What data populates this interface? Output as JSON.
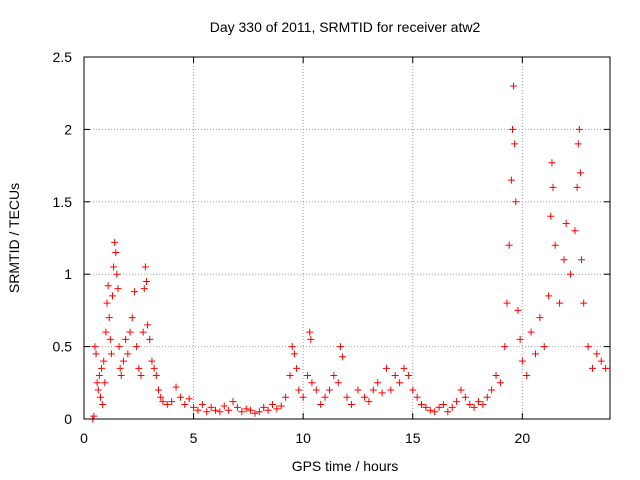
{
  "chart_data": {
    "type": "scatter",
    "title": "Day 330 of 2011, SRMTID for receiver atw2",
    "xlabel": "GPS time / hours",
    "ylabel": "SRMTID / TECUs",
    "xlim": [
      0,
      24
    ],
    "ylim": [
      0,
      2.5
    ],
    "xticks": [
      0,
      5,
      10,
      15,
      20
    ],
    "yticks": [
      0,
      0.5,
      1,
      1.5,
      2,
      2.5
    ],
    "xtick_labels": [
      "0",
      "5",
      "10",
      "15",
      "20"
    ],
    "ytick_labels": [
      "0",
      "0.5",
      "1",
      "1.5",
      "2",
      "2.5"
    ],
    "grid": true,
    "marker": "+",
    "color": "#ff0000",
    "series": [
      {
        "name": "SRMTID",
        "points": [
          [
            0.4,
            0.0
          ],
          [
            0.45,
            0.02
          ],
          [
            0.5,
            0.5
          ],
          [
            0.55,
            0.45
          ],
          [
            0.6,
            0.25
          ],
          [
            0.65,
            0.2
          ],
          [
            0.7,
            0.3
          ],
          [
            0.75,
            0.15
          ],
          [
            0.8,
            0.35
          ],
          [
            0.85,
            0.1
          ],
          [
            0.9,
            0.4
          ],
          [
            0.95,
            0.25
          ],
          [
            1.0,
            0.6
          ],
          [
            1.05,
            0.8
          ],
          [
            1.1,
            0.92
          ],
          [
            1.15,
            0.7
          ],
          [
            1.2,
            0.55
          ],
          [
            1.25,
            0.45
          ],
          [
            1.3,
            0.85
          ],
          [
            1.35,
            1.05
          ],
          [
            1.4,
            1.22
          ],
          [
            1.45,
            1.15
          ],
          [
            1.5,
            1.0
          ],
          [
            1.55,
            0.9
          ],
          [
            1.6,
            0.5
          ],
          [
            1.65,
            0.35
          ],
          [
            1.7,
            0.3
          ],
          [
            1.8,
            0.4
          ],
          [
            1.9,
            0.55
          ],
          [
            2.0,
            0.45
          ],
          [
            2.1,
            0.6
          ],
          [
            2.2,
            0.7
          ],
          [
            2.3,
            0.88
          ],
          [
            2.4,
            0.5
          ],
          [
            2.5,
            0.35
          ],
          [
            2.6,
            0.3
          ],
          [
            2.7,
            0.6
          ],
          [
            2.75,
            0.9
          ],
          [
            2.8,
            1.05
          ],
          [
            2.85,
            0.95
          ],
          [
            2.9,
            0.65
          ],
          [
            3.0,
            0.55
          ],
          [
            3.1,
            0.4
          ],
          [
            3.2,
            0.35
          ],
          [
            3.3,
            0.3
          ],
          [
            3.4,
            0.2
          ],
          [
            3.5,
            0.15
          ],
          [
            3.6,
            0.12
          ],
          [
            3.8,
            0.1
          ],
          [
            4.0,
            0.12
          ],
          [
            4.2,
            0.22
          ],
          [
            4.4,
            0.15
          ],
          [
            4.6,
            0.1
          ],
          [
            4.8,
            0.14
          ],
          [
            5.0,
            0.08
          ],
          [
            5.2,
            0.06
          ],
          [
            5.4,
            0.1
          ],
          [
            5.6,
            0.05
          ],
          [
            5.8,
            0.08
          ],
          [
            6.0,
            0.06
          ],
          [
            6.2,
            0.05
          ],
          [
            6.4,
            0.09
          ],
          [
            6.6,
            0.06
          ],
          [
            6.8,
            0.12
          ],
          [
            7.0,
            0.08
          ],
          [
            7.2,
            0.05
          ],
          [
            7.4,
            0.07
          ],
          [
            7.6,
            0.06
          ],
          [
            7.8,
            0.04
          ],
          [
            8.0,
            0.05
          ],
          [
            8.2,
            0.08
          ],
          [
            8.4,
            0.06
          ],
          [
            8.6,
            0.1
          ],
          [
            8.8,
            0.07
          ],
          [
            9.0,
            0.09
          ],
          [
            9.2,
            0.15
          ],
          [
            9.4,
            0.3
          ],
          [
            9.5,
            0.5
          ],
          [
            9.6,
            0.45
          ],
          [
            9.7,
            0.35
          ],
          [
            9.8,
            0.2
          ],
          [
            10.0,
            0.15
          ],
          [
            10.2,
            0.3
          ],
          [
            10.3,
            0.6
          ],
          [
            10.35,
            0.55
          ],
          [
            10.4,
            0.25
          ],
          [
            10.6,
            0.2
          ],
          [
            10.8,
            0.1
          ],
          [
            11.0,
            0.15
          ],
          [
            11.2,
            0.2
          ],
          [
            11.4,
            0.3
          ],
          [
            11.6,
            0.25
          ],
          [
            11.7,
            0.5
          ],
          [
            11.8,
            0.43
          ],
          [
            12.0,
            0.15
          ],
          [
            12.2,
            0.1
          ],
          [
            12.5,
            0.2
          ],
          [
            12.8,
            0.15
          ],
          [
            13.0,
            0.12
          ],
          [
            13.2,
            0.2
          ],
          [
            13.4,
            0.25
          ],
          [
            13.6,
            0.18
          ],
          [
            13.8,
            0.35
          ],
          [
            14.0,
            0.2
          ],
          [
            14.2,
            0.3
          ],
          [
            14.4,
            0.25
          ],
          [
            14.6,
            0.35
          ],
          [
            14.8,
            0.3
          ],
          [
            15.0,
            0.2
          ],
          [
            15.2,
            0.15
          ],
          [
            15.4,
            0.1
          ],
          [
            15.6,
            0.08
          ],
          [
            15.8,
            0.06
          ],
          [
            16.0,
            0.05
          ],
          [
            16.2,
            0.08
          ],
          [
            16.4,
            0.1
          ],
          [
            16.6,
            0.05
          ],
          [
            16.8,
            0.08
          ],
          [
            17.0,
            0.12
          ],
          [
            17.2,
            0.2
          ],
          [
            17.4,
            0.15
          ],
          [
            17.6,
            0.1
          ],
          [
            17.8,
            0.08
          ],
          [
            18.0,
            0.12
          ],
          [
            18.2,
            0.1
          ],
          [
            18.4,
            0.15
          ],
          [
            18.6,
            0.2
          ],
          [
            18.8,
            0.3
          ],
          [
            19.0,
            0.25
          ],
          [
            19.2,
            0.5
          ],
          [
            19.3,
            0.8
          ],
          [
            19.4,
            1.2
          ],
          [
            19.5,
            1.65
          ],
          [
            19.55,
            2.0
          ],
          [
            19.6,
            2.3
          ],
          [
            19.65,
            1.9
          ],
          [
            19.7,
            1.5
          ],
          [
            19.8,
            0.75
          ],
          [
            19.9,
            0.55
          ],
          [
            20.0,
            0.4
          ],
          [
            20.2,
            0.3
          ],
          [
            20.4,
            0.6
          ],
          [
            20.6,
            0.45
          ],
          [
            20.8,
            0.7
          ],
          [
            21.0,
            0.5
          ],
          [
            21.2,
            0.85
          ],
          [
            21.3,
            1.4
          ],
          [
            21.35,
            1.77
          ],
          [
            21.4,
            1.6
          ],
          [
            21.5,
            1.2
          ],
          [
            21.7,
            0.8
          ],
          [
            21.9,
            1.1
          ],
          [
            22.0,
            1.35
          ],
          [
            22.2,
            1.0
          ],
          [
            22.4,
            1.3
          ],
          [
            22.5,
            1.6
          ],
          [
            22.55,
            1.9
          ],
          [
            22.6,
            2.0
          ],
          [
            22.65,
            1.7
          ],
          [
            22.7,
            1.1
          ],
          [
            22.8,
            0.8
          ],
          [
            23.0,
            0.5
          ],
          [
            23.2,
            0.35
          ],
          [
            23.4,
            0.45
          ],
          [
            23.6,
            0.4
          ],
          [
            23.8,
            0.35
          ]
        ]
      }
    ]
  }
}
